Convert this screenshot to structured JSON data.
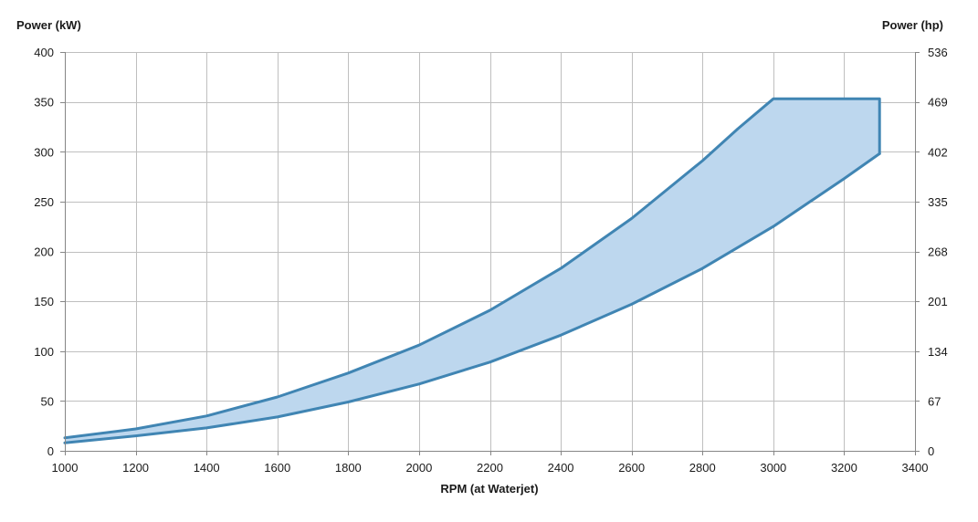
{
  "chart_data": {
    "type": "area",
    "title": "",
    "xlabel": "RPM (at Waterjet)",
    "ylabel_left": "Power (kW)",
    "ylabel_right": "Power (hp)",
    "xlim": [
      1000,
      3400
    ],
    "ylim_left": [
      0,
      400
    ],
    "ylim_right": [
      0,
      536
    ],
    "x_ticks": [
      "1000",
      "1200",
      "1400",
      "1600",
      "1800",
      "2000",
      "2200",
      "2400",
      "2600",
      "2800",
      "3000",
      "3200",
      "3400"
    ],
    "y_ticks_left": [
      "0",
      "50",
      "100",
      "150",
      "200",
      "250",
      "300",
      "350",
      "400"
    ],
    "y_ticks_right": [
      "0",
      "67",
      "134",
      "201",
      "268",
      "335",
      "402",
      "469",
      "536"
    ],
    "grid": true,
    "legend": "none",
    "colors": {
      "line": "#4085b3",
      "fill": "#bdd7ee",
      "grid": "#bfbfbf",
      "axis": "#868686"
    },
    "series": [
      {
        "x": [
          1000,
          1200,
          1400,
          1600,
          1800,
          2000,
          2200,
          2400,
          2600,
          2800,
          2900,
          3000,
          3300,
          3300
        ],
        "values": [
          13,
          22,
          35,
          54,
          78,
          106,
          141,
          183,
          233,
          291,
          323,
          353,
          353,
          298
        ]
      },
      {
        "x": [
          1000,
          1200,
          1400,
          1600,
          1800,
          2000,
          2200,
          2400,
          2600,
          2800,
          3000,
          3200,
          3300
        ],
        "values": [
          8,
          15,
          23,
          34,
          49,
          67,
          89,
          116,
          147,
          183,
          225,
          273,
          298
        ]
      }
    ]
  }
}
